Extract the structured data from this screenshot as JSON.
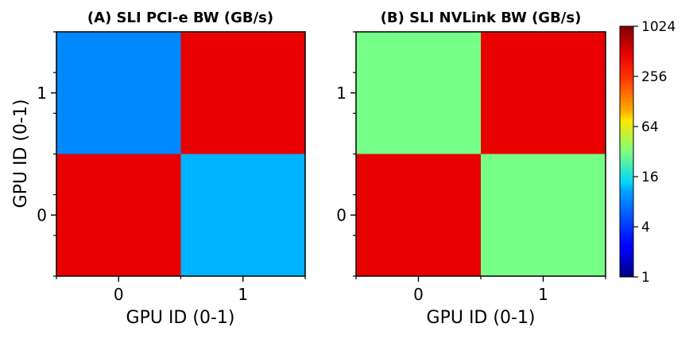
{
  "chart_data": {
    "type": "heatmap",
    "colorbar": {
      "scale": "log2",
      "range": [
        1,
        1024
      ],
      "ticks": [
        1,
        4,
        16,
        64,
        256,
        1024
      ],
      "tick_labels": [
        "1",
        "4",
        "16",
        "64",
        "256",
        "1024"
      ],
      "colormap": "jet"
    },
    "panels": [
      {
        "title": "(A) SLI PCI-e BW (GB/s)",
        "xlabel": "GPU ID (0-1)",
        "ylabel": "GPU ID (0-1)",
        "x_categories": [
          "0",
          "1"
        ],
        "y_categories": [
          "0",
          "1"
        ],
        "cells": [
          {
            "x": "0",
            "y": "1",
            "value": 6
          },
          {
            "x": "1",
            "y": "1",
            "value": 500
          },
          {
            "x": "0",
            "y": "0",
            "value": 500
          },
          {
            "x": "1",
            "y": "0",
            "value": 8
          }
        ]
      },
      {
        "title": "(B) SLI NVLink BW (GB/s)",
        "xlabel": "GPU ID (0-1)",
        "ylabel": "",
        "x_categories": [
          "0",
          "1"
        ],
        "y_categories": [
          "0",
          "1"
        ],
        "cells": [
          {
            "x": "0",
            "y": "1",
            "value": 30
          },
          {
            "x": "1",
            "y": "1",
            "value": 500
          },
          {
            "x": "0",
            "y": "0",
            "value": 500
          },
          {
            "x": "1",
            "y": "0",
            "value": 30
          }
        ]
      }
    ]
  }
}
